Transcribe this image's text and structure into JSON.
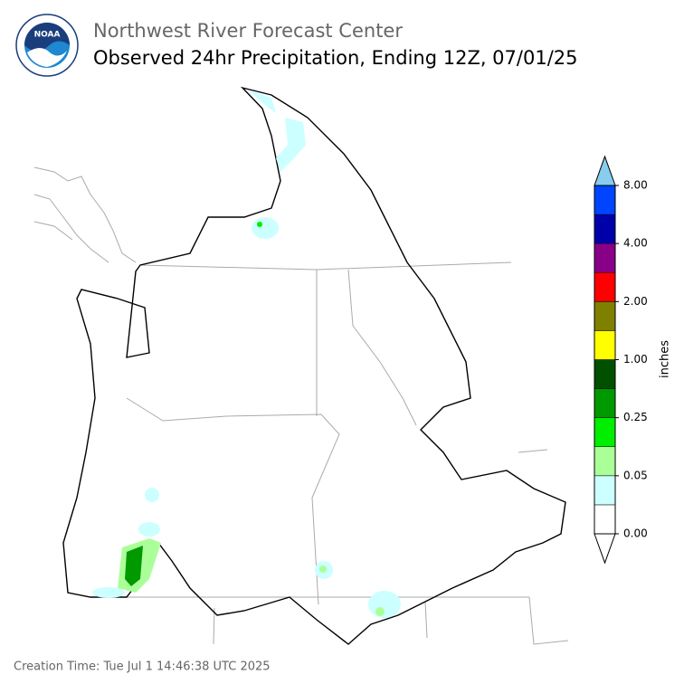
{
  "logo": {
    "text": "NOAA"
  },
  "title": "Northwest River Forecast Center",
  "subtitle": "Observed 24hr Precipitation, Ending 12Z, 07/01/25",
  "colorbar": {
    "label": "inches",
    "ticks": [
      "0.00",
      "0.05",
      "0.25",
      "1.00",
      "2.00",
      "4.00",
      "8.00"
    ],
    "colors": [
      "#ffffff",
      "#ccffff",
      "#aaff99",
      "#00ee00",
      "#009900",
      "#005000",
      "#ffff00",
      "#808000",
      "#ff0000",
      "#880088",
      "#0000aa",
      "#0044ff"
    ],
    "under_color": "#ffffff",
    "over_color": "#88ccee"
  },
  "footer": "Creation Time: Tue Jul 1 14:46:38 UTC 2025"
}
